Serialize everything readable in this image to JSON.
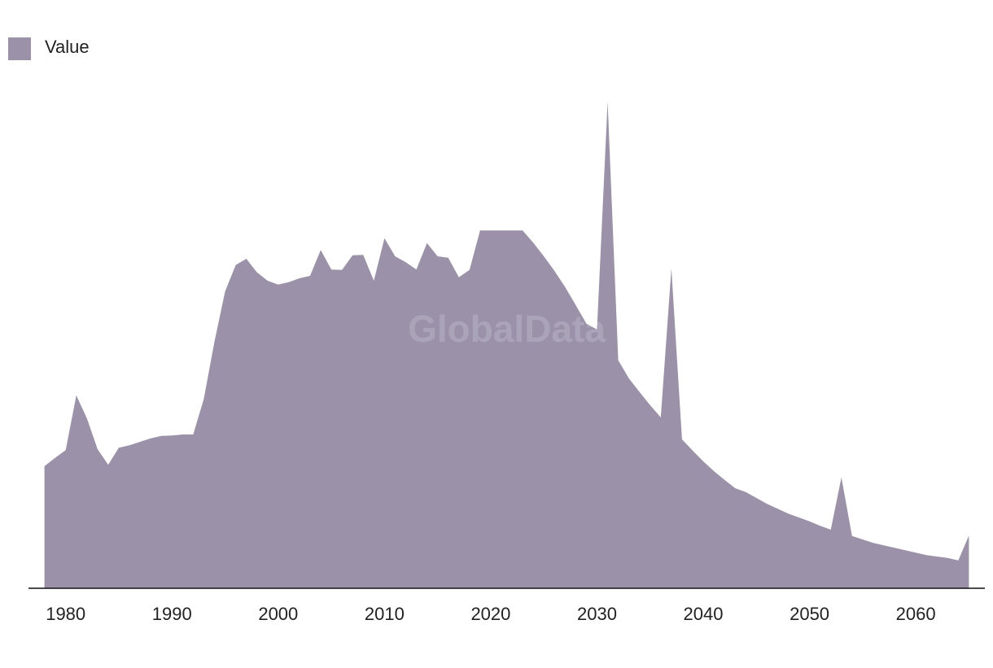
{
  "chart_data": {
    "type": "area",
    "watermark": "GlobalData",
    "legend": "top-left",
    "x": [
      1978,
      1979,
      1980,
      1981,
      1982,
      1983,
      1984,
      1985,
      1986,
      1987,
      1988,
      1989,
      1990,
      1991,
      1992,
      1993,
      1994,
      1995,
      1996,
      1997,
      1998,
      1999,
      2000,
      2001,
      2002,
      2003,
      2004,
      2005,
      2006,
      2007,
      2008,
      2009,
      2010,
      2011,
      2012,
      2013,
      2014,
      2015,
      2016,
      2017,
      2018,
      2019,
      2020,
      2021,
      2022,
      2023,
      2024,
      2025,
      2026,
      2027,
      2028,
      2029,
      2030,
      2031,
      2032,
      2033,
      2034,
      2035,
      2036,
      2037,
      2038,
      2039,
      2040,
      2041,
      2042,
      2043,
      2044,
      2045,
      2046,
      2047,
      2048,
      2049,
      2050,
      2051,
      2052,
      2053,
      2054,
      2055,
      2056,
      2057,
      2058,
      2059,
      2060,
      2061,
      2062,
      2063,
      2064,
      2065
    ],
    "series": [
      {
        "name": "Value",
        "color": "#9b92aa",
        "values": [
          25.0,
          26.7,
          28.3,
          39.5,
          34.8,
          28.5,
          25.3,
          28.8,
          29.3,
          30.0,
          30.7,
          31.2,
          31.3,
          31.5,
          31.5,
          38.8,
          50.5,
          60.8,
          66.2,
          67.5,
          64.7,
          63.0,
          62.2,
          62.7,
          63.5,
          64.0,
          69.3,
          65.3,
          65.2,
          68.2,
          68.3,
          63.0,
          71.7,
          68.0,
          66.8,
          65.3,
          70.7,
          68.0,
          67.7,
          63.7,
          65.2,
          73.3,
          73.3,
          73.3,
          73.3,
          73.3,
          70.8,
          68.0,
          65.0,
          61.7,
          58.0,
          54.2,
          53.0,
          99.7,
          46.7,
          43.0,
          40.2,
          37.5,
          35.0,
          65.5,
          30.5,
          28.2,
          26.0,
          24.0,
          22.2,
          20.5,
          19.7,
          18.5,
          17.3,
          16.3,
          15.3,
          14.5,
          13.7,
          12.8,
          12.0,
          22.7,
          10.7,
          10.0,
          9.3,
          8.8,
          8.3,
          7.8,
          7.3,
          6.8,
          6.5,
          6.2,
          5.7,
          10.8
        ]
      }
    ],
    "xlim": [
      1976.5,
      2066.5
    ],
    "xticks": [
      1980,
      1990,
      2000,
      2010,
      2020,
      2030,
      2040,
      2050,
      2060
    ],
    "ylim": [
      0,
      100
    ]
  }
}
